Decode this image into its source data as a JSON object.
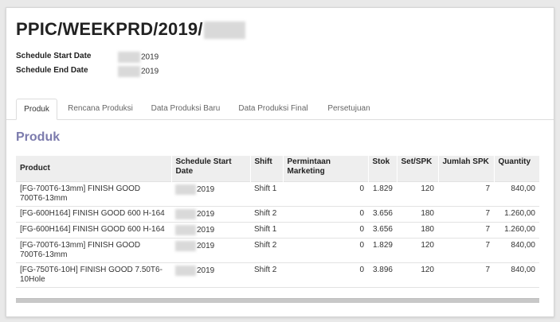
{
  "record": {
    "title": "PPIC/WEEKPRD/2019/",
    "fields": [
      {
        "label": "Schedule Start Date",
        "value": "2019"
      },
      {
        "label": "Schedule End Date",
        "value": "2019"
      }
    ]
  },
  "tabs": [
    {
      "label": "Produk",
      "active": true
    },
    {
      "label": "Rencana Produksi",
      "active": false
    },
    {
      "label": "Data Produksi Baru",
      "active": false
    },
    {
      "label": "Data Produksi Final",
      "active": false
    },
    {
      "label": "Persetujuan",
      "active": false
    }
  ],
  "section": {
    "title": "Produk"
  },
  "table": {
    "columns": [
      "Product",
      "Schedule Start Date",
      "Shift",
      "Permintaan Marketing",
      "Stok",
      "Set/SPK",
      "Jumlah SPK",
      "Quantity"
    ],
    "rows": [
      [
        "[FG-700T6-13mm] FINISH GOOD 700T6-13mm",
        "2019",
        "Shift 1",
        "0",
        "1.829",
        "120",
        "7",
        "840,00"
      ],
      [
        "[FG-600H164] FINISH GOOD 600 H-164",
        "2019",
        "Shift 2",
        "0",
        "3.656",
        "180",
        "7",
        "1.260,00"
      ],
      [
        "[FG-600H164] FINISH GOOD 600 H-164",
        "2019",
        "Shift 1",
        "0",
        "3.656",
        "180",
        "7",
        "1.260,00"
      ],
      [
        "[FG-700T6-13mm] FINISH GOOD 700T6-13mm",
        "2019",
        "Shift 2",
        "0",
        "1.829",
        "120",
        "7",
        "840,00"
      ],
      [
        "[FG-750T6-10H] FINISH GOOD 7.50T6-10Hole",
        "2019",
        "Shift 2",
        "0",
        "3.896",
        "120",
        "7",
        "840,00"
      ]
    ]
  }
}
